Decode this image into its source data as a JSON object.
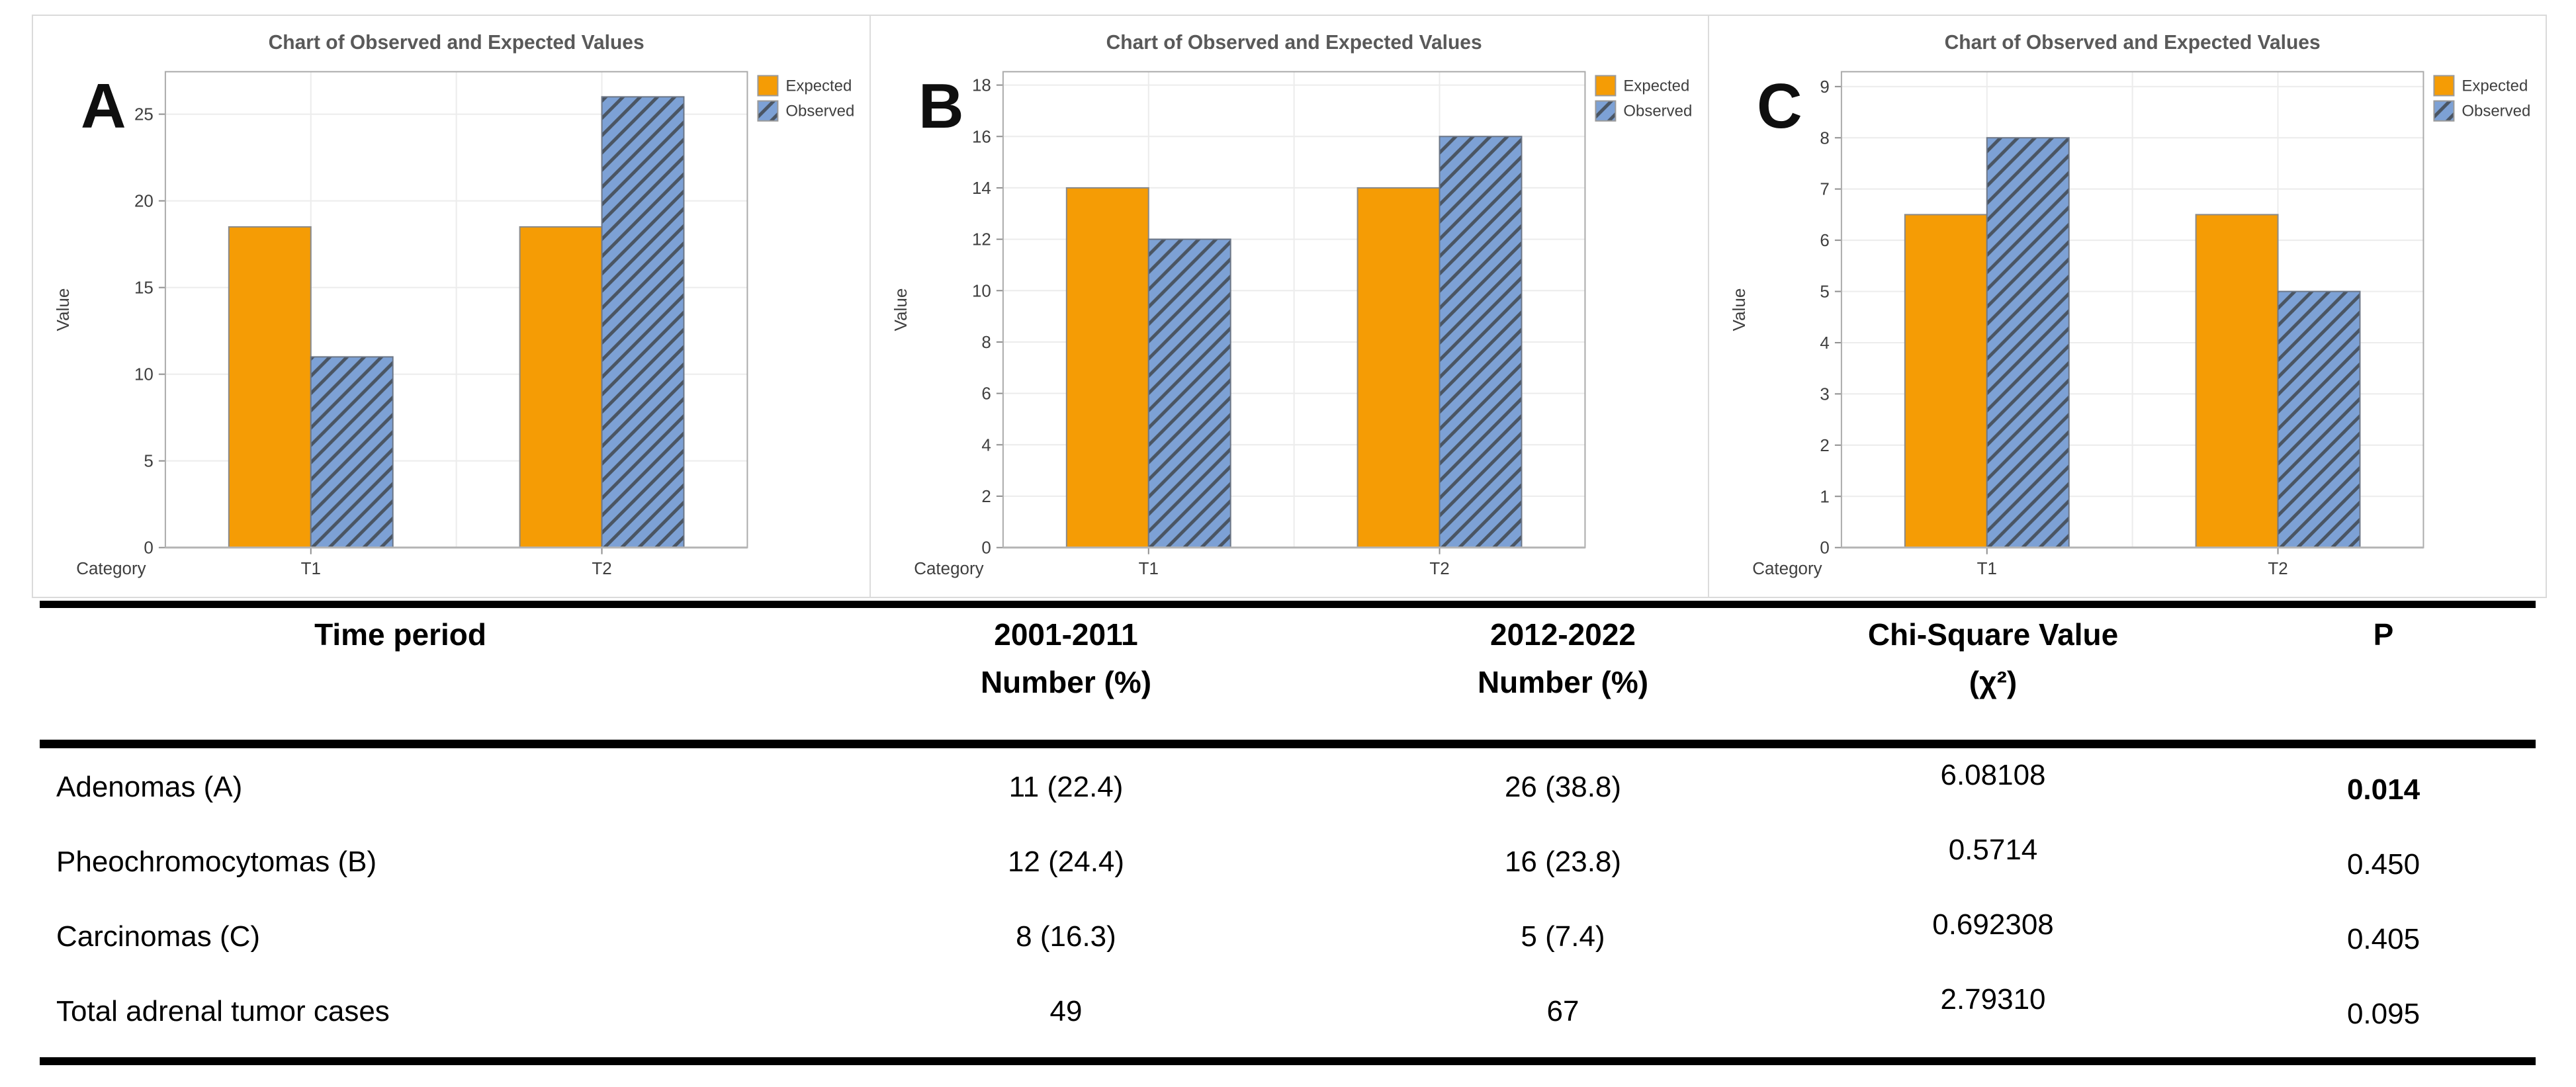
{
  "figure_type": "composite-chart-and-table",
  "colors": {
    "expected": "#F59C05",
    "observed": "#7DA1D5",
    "hatch": "#4A5563",
    "frame": "#ABABAB",
    "grid": "#ECECEC",
    "baseline": "#B5B5B5",
    "tickmark": "#8F8F8F",
    "title_text": "#595959",
    "rule": "#000000"
  },
  "chart_data": [
    {
      "type": "bar",
      "panel_label": "A",
      "title": "Chart of Observed and Expected Values",
      "xlabel": "Category",
      "ylabel": "Value",
      "categories": [
        "T1",
        "T2"
      ],
      "series": [
        {
          "name": "Expected",
          "values": [
            18.5,
            18.5
          ]
        },
        {
          "name": "Observed",
          "values": [
            11,
            26
          ]
        }
      ],
      "yticks": [
        0,
        5,
        10,
        15,
        20,
        25
      ],
      "ymax": 27.45,
      "legend_position": "top-right",
      "grid": true
    },
    {
      "type": "bar",
      "panel_label": "B",
      "title": "Chart of Observed and Expected Values",
      "xlabel": "Category",
      "ylabel": "Value",
      "categories": [
        "T1",
        "T2"
      ],
      "series": [
        {
          "name": "Expected",
          "values": [
            14,
            14
          ]
        },
        {
          "name": "Observed",
          "values": [
            12,
            16
          ]
        }
      ],
      "yticks": [
        0,
        2,
        4,
        6,
        8,
        10,
        12,
        14,
        16,
        18
      ],
      "ymax": 18.52,
      "legend_position": "top-right",
      "grid": true
    },
    {
      "type": "bar",
      "panel_label": "C",
      "title": "Chart of Observed and Expected Values",
      "xlabel": "Category",
      "ylabel": "Value",
      "categories": [
        "T1",
        "T2"
      ],
      "series": [
        {
          "name": "Expected",
          "values": [
            6.5,
            6.5
          ]
        },
        {
          "name": "Observed",
          "values": [
            8,
            5
          ]
        }
      ],
      "yticks": [
        0,
        1,
        2,
        3,
        4,
        5,
        6,
        7,
        8,
        9
      ],
      "ymax": 9.29,
      "legend_position": "top-right",
      "grid": true
    }
  ],
  "table": {
    "headers": {
      "col1": "Time period",
      "col2_line1": "2001-2011",
      "col2_line2": "Number (%)",
      "col3_line1": "2012-2022",
      "col3_line2": "Number (%)",
      "col4_line1": "Chi-Square Value",
      "col4_line2": "(χ²)",
      "col5": "P"
    },
    "rows": [
      {
        "label": "Adenomas (A)",
        "n1": "11 (22.4)",
        "n2": "26 (38.8)",
        "chi": "6.08108",
        "p": "0.014",
        "p_bold": true
      },
      {
        "label": "Pheochromocytomas (B)",
        "n1": "12 (24.4)",
        "n2": "16 (23.8)",
        "chi": "0.5714",
        "p": "0.450",
        "p_bold": false
      },
      {
        "label": "Carcinomas (C)",
        "n1": "8 (16.3)",
        "n2": "5 (7.4)",
        "chi": "0.692308",
        "p": "0.405",
        "p_bold": false
      },
      {
        "label": "Total adrenal tumor cases",
        "n1": "49",
        "n2": "67",
        "chi": "2.79310",
        "p": "0.095",
        "p_bold": false
      }
    ]
  }
}
